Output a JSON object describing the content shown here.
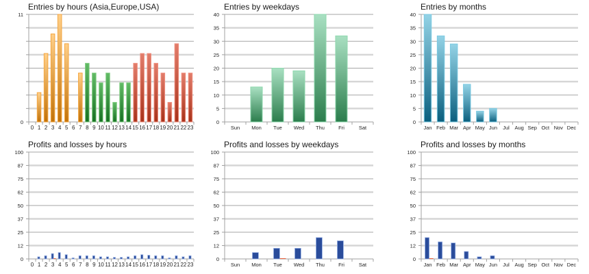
{
  "chart_data": [
    {
      "id": "entries-hours",
      "type": "bar",
      "title": "Entries by hours (Asia,Europe,USA)",
      "xlabel": "",
      "ylabel": "",
      "ylim": [
        0,
        11
      ],
      "yticks": [
        "0",
        "",
        "",
        "",
        "",
        "",
        "",
        "",
        "11"
      ],
      "grid": true,
      "categories": [
        "0",
        "1",
        "2",
        "3",
        "4",
        "5",
        "6",
        "7",
        "8",
        "9",
        "10",
        "11",
        "12",
        "13",
        "14",
        "15",
        "16",
        "17",
        "18",
        "19",
        "20",
        "21",
        "22",
        "23"
      ],
      "values": [
        0,
        3,
        7,
        9,
        11,
        8,
        0,
        5,
        6,
        5,
        4,
        5,
        2,
        4,
        4,
        6,
        7,
        7,
        6,
        5,
        2,
        8,
        5,
        5
      ],
      "color_groups": [
        {
          "name": "Asia",
          "from": 0,
          "to": 7,
          "top": "#FFD08A",
          "bottom": "#C27208",
          "edge": "#F4A640"
        },
        {
          "name": "Europe",
          "from": 8,
          "to": 14,
          "top": "#62BB66",
          "bottom": "#167022",
          "edge": "#7FCC80"
        },
        {
          "name": "USA",
          "from": 15,
          "to": 23,
          "top": "#E27D6B",
          "bottom": "#A8321A",
          "edge": "#F09080"
        }
      ]
    },
    {
      "id": "entries-weekdays",
      "type": "bar",
      "title": "Entries by weekdays",
      "xlabel": "",
      "ylabel": "",
      "ylim": [
        0,
        40
      ],
      "yticks": [
        "0",
        "5",
        "10",
        "15",
        "20",
        "25",
        "30",
        "35",
        "40"
      ],
      "grid": true,
      "categories": [
        "Sun",
        "Mon",
        "Tue",
        "Wed",
        "Thu",
        "Fri",
        "Sat"
      ],
      "values": [
        0,
        13,
        20,
        19,
        40,
        32,
        0
      ],
      "color_groups": [
        {
          "name": "all",
          "from": 0,
          "to": 6,
          "top": "#A9E0C2",
          "bottom": "#2B7D4C",
          "edge": "#8ED8AE"
        }
      ]
    },
    {
      "id": "entries-months",
      "type": "bar",
      "title": "Entries by months",
      "xlabel": "",
      "ylabel": "",
      "ylim": [
        0,
        40
      ],
      "yticks": [
        "0",
        "5",
        "10",
        "15",
        "20",
        "25",
        "30",
        "35",
        "40"
      ],
      "grid": true,
      "categories": [
        "Jan",
        "Feb",
        "Mar",
        "Apr",
        "May",
        "Jun",
        "Jul",
        "Aug",
        "Sep",
        "Oct",
        "Nov",
        "Dec"
      ],
      "values": [
        40,
        32,
        29,
        14,
        4,
        5,
        0,
        0,
        0,
        0,
        0,
        0
      ],
      "color_groups": [
        {
          "name": "all",
          "from": 0,
          "to": 11,
          "top": "#94D3E6",
          "bottom": "#0A5F7E",
          "edge": "#7CCAE2"
        }
      ]
    },
    {
      "id": "profits-hours",
      "type": "bar",
      "title": "Profits and losses by hours",
      "xlabel": "",
      "ylabel": "",
      "ylim": [
        0,
        100
      ],
      "yticks": [
        "0",
        "12",
        "25",
        "37",
        "50",
        "62",
        "75",
        "87",
        "100"
      ],
      "grid": true,
      "categories": [
        "0",
        "1",
        "2",
        "3",
        "4",
        "5",
        "6",
        "7",
        "8",
        "9",
        "10",
        "11",
        "12",
        "13",
        "14",
        "15",
        "16",
        "17",
        "18",
        "19",
        "20",
        "21",
        "22",
        "23"
      ],
      "series": [
        {
          "name": "Profits",
          "color": "#2A4C9B",
          "edge": "#9DB5E6",
          "values": [
            0,
            2,
            3,
            5,
            6,
            4,
            1,
            3,
            3,
            3,
            2,
            2,
            1.5,
            1.5,
            2,
            3,
            4,
            3.5,
            3,
            3,
            1,
            3,
            2,
            3
          ]
        },
        {
          "name": "Losses",
          "color": "#E8603C",
          "edge": "#F0A080",
          "values": [
            0,
            0,
            0,
            0.5,
            0,
            0,
            0,
            0,
            0,
            0,
            0,
            0,
            0,
            0,
            0,
            0,
            0,
            0,
            0,
            0,
            0,
            0,
            0,
            0
          ]
        }
      ]
    },
    {
      "id": "profits-weekdays",
      "type": "bar",
      "title": "Profits and losses by weekdays",
      "xlabel": "",
      "ylabel": "",
      "ylim": [
        0,
        100
      ],
      "yticks": [
        "0",
        "12",
        "25",
        "37",
        "50",
        "62",
        "75",
        "87",
        "100"
      ],
      "grid": true,
      "categories": [
        "Sun",
        "Mon",
        "Tue",
        "Wed",
        "Thu",
        "Fri",
        "Sat"
      ],
      "series": [
        {
          "name": "Profits",
          "color": "#2A4C9B",
          "edge": "#9DB5E6",
          "values": [
            0,
            6,
            10,
            10,
            20,
            17,
            0
          ]
        },
        {
          "name": "Losses",
          "color": "#E8603C",
          "edge": "#F0A080",
          "values": [
            0,
            0,
            0.5,
            0,
            0,
            0,
            0
          ]
        }
      ]
    },
    {
      "id": "profits-months",
      "type": "bar",
      "title": "Profits and losses by months",
      "xlabel": "",
      "ylabel": "",
      "ylim": [
        0,
        100
      ],
      "yticks": [
        "0",
        "12",
        "25",
        "37",
        "50",
        "62",
        "75",
        "87",
        "100"
      ],
      "grid": true,
      "categories": [
        "Jan",
        "Feb",
        "Mar",
        "Apr",
        "May",
        "Jun",
        "Jul",
        "Aug",
        "Sep",
        "Oct",
        "Nov",
        "Dec"
      ],
      "series": [
        {
          "name": "Profits",
          "color": "#2A4C9B",
          "edge": "#9DB5E6",
          "values": [
            20,
            16,
            15,
            7,
            2,
            3,
            0,
            0,
            0,
            0,
            0,
            0
          ]
        },
        {
          "name": "Losses",
          "color": "#E8603C",
          "edge": "#F0A080",
          "values": [
            0.5,
            0,
            0,
            0,
            0,
            0,
            0,
            0,
            0,
            0,
            0,
            0
          ]
        }
      ]
    }
  ],
  "style": {
    "grid_major": "#A6A6A6",
    "grid_minor": "#D6D6D6",
    "axis": "#A0A0A0",
    "tick_text": "#222222"
  }
}
